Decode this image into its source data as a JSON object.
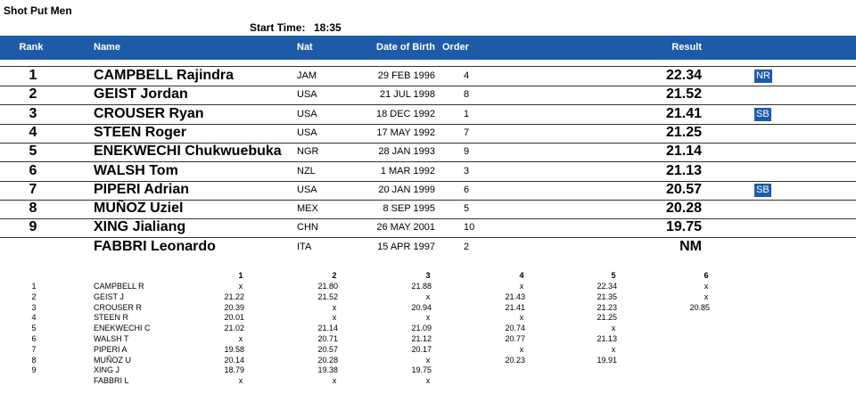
{
  "title": "Shot Put Men",
  "start_time": {
    "label": "Start Time:",
    "value": "18:35"
  },
  "results": {
    "columns": [
      "Rank",
      "Name",
      "Nat",
      "Date of Birth",
      "Order",
      "Result"
    ],
    "rows": [
      {
        "rank": "1",
        "name": "CAMPBELL Rajindra",
        "nat": "JAM",
        "dob": "29 FEB 1996",
        "order": "4",
        "result": "22.34",
        "record": "NR"
      },
      {
        "rank": "2",
        "name": "GEIST Jordan",
        "nat": "USA",
        "dob": "21 JUL 1998",
        "order": "8",
        "result": "21.52"
      },
      {
        "rank": "3",
        "name": "CROUSER Ryan",
        "nat": "USA",
        "dob": "18 DEC 1992",
        "order": "1",
        "result": "21.41",
        "record": "SB"
      },
      {
        "rank": "4",
        "name": "STEEN Roger",
        "nat": "USA",
        "dob": "17 MAY 1992",
        "order": "7",
        "result": "21.25"
      },
      {
        "rank": "5",
        "name": "ENEKWECHI Chukwuebuka",
        "nat": "NGR",
        "dob": "28 JAN 1993",
        "order": "9",
        "result": "21.14"
      },
      {
        "rank": "6",
        "name": "WALSH Tom",
        "nat": "NZL",
        "dob": "1 MAR 1992",
        "order": "3",
        "result": "21.13"
      },
      {
        "rank": "7",
        "name": "PIPERI Adrian",
        "nat": "USA",
        "dob": "20 JAN 1999",
        "order": "6",
        "result": "20.57",
        "record": "SB"
      },
      {
        "rank": "8",
        "name": "MUÑOZ Uziel",
        "nat": "MEX",
        "dob": "8 SEP 1995",
        "order": "5",
        "result": "20.28"
      },
      {
        "rank": "9",
        "name": "XING Jialiang",
        "nat": "CHN",
        "dob": "26 MAY 2001",
        "order": "10",
        "result": "19.75"
      },
      {
        "name": "FABBRI Leonardo",
        "nat": "ITA",
        "dob": "15 APR 1997",
        "order": "2",
        "result": "NM"
      }
    ]
  },
  "series": {
    "columns": [
      "1",
      "2",
      "3",
      "4",
      "5",
      "6"
    ],
    "rows": [
      {
        "rank": "1",
        "name": "CAMPBELL R",
        "attempts": [
          "x",
          "21.80",
          "21.88",
          "x",
          "22.34",
          "x"
        ]
      },
      {
        "rank": "2",
        "name": "GEIST J",
        "attempts": [
          "21.22",
          "21.52",
          "x",
          "21.43",
          "21.35",
          "x"
        ]
      },
      {
        "rank": "3",
        "name": "CROUSER R",
        "attempts": [
          "20.39",
          "x",
          "20.94",
          "21.41",
          "21.23",
          "20.85"
        ]
      },
      {
        "rank": "4",
        "name": "STEEN R",
        "attempts": [
          "20.01",
          "x",
          "x",
          "x",
          "21.25"
        ]
      },
      {
        "rank": "5",
        "name": "ENEKWECHI C",
        "attempts": [
          "21.02",
          "21.14",
          "21.09",
          "20.74",
          "x"
        ]
      },
      {
        "rank": "6",
        "name": "WALSH T",
        "attempts": [
          "x",
          "20.71",
          "21.12",
          "20.77",
          "21.13"
        ]
      },
      {
        "rank": "7",
        "name": "PIPERI A",
        "attempts": [
          "19.58",
          "20.57",
          "20.17",
          "x",
          "x"
        ]
      },
      {
        "rank": "8",
        "name": "MUÑOZ U",
        "attempts": [
          "20.14",
          "20.28",
          "x",
          "20.23",
          "19.91"
        ]
      },
      {
        "rank": "9",
        "name": "XING J",
        "attempts": [
          "18.79",
          "19.38",
          "19.75"
        ]
      },
      {
        "name": "FABBRI L",
        "attempts": [
          "x",
          "x",
          "x"
        ]
      }
    ]
  }
}
